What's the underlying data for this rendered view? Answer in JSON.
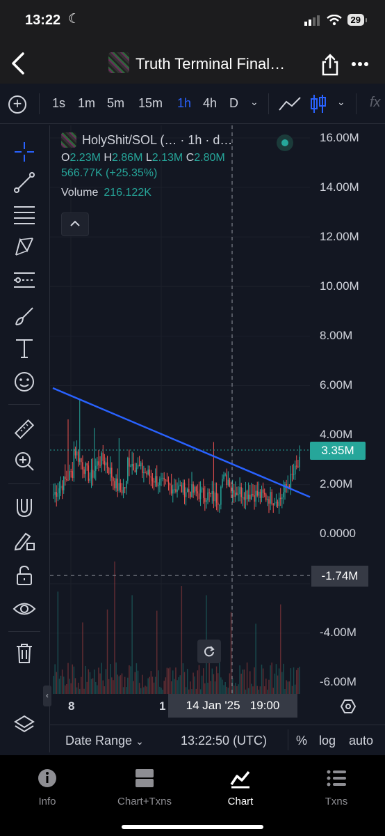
{
  "status": {
    "time": "13:22",
    "battery": "29"
  },
  "nav": {
    "title": "Truth Terminal Final…"
  },
  "toolbar": {
    "timeframes": [
      "1s",
      "1m",
      "5m",
      "15m",
      "1h",
      "4h",
      "D"
    ],
    "active_timeframe": "1h",
    "fx_label": "fx"
  },
  "legend": {
    "symbol": "HolyShit/SOL (… · 1h · d…",
    "o_key": "O",
    "o": "2.23M",
    "h_key": "H",
    "h": "2.86M",
    "l_key": "L",
    "l": "2.13M",
    "c_key": "C",
    "c": "2.80M",
    "change": "566.77K (+25.35%)",
    "volume_label": "Volume",
    "volume_value": "216.122K"
  },
  "price_axis": [
    "16.00M",
    "14.00M",
    "12.00M",
    "10.00M",
    "8.00M",
    "6.00M",
    "4.00M",
    "2.00M",
    "0.0000",
    "-4.00M",
    "-6.00M"
  ],
  "current_price": "3.35M",
  "crosshair_price": "-1.74M",
  "time_axis": {
    "left_label": "8",
    "mid_label": "1",
    "crosshair_time": "14 Jan '25   19:00"
  },
  "range_bar": {
    "date_range": "Date Range",
    "clock": "13:22:50 (UTC)",
    "percent": "%",
    "log": "log",
    "auto": "auto"
  },
  "tabs": [
    {
      "label": "Info"
    },
    {
      "label": "Chart+Txns"
    },
    {
      "label": "Chart"
    },
    {
      "label": "Txns"
    }
  ],
  "colors": {
    "up": "#26a69a",
    "down": "#ef5350",
    "trendline": "#2962ff",
    "background": "#131722"
  },
  "chart_data": {
    "type": "candlestick",
    "interval": "1h",
    "ylim": [
      -6000000,
      16000000
    ],
    "last_close": 2800000,
    "trendline": {
      "start_price": 5900000,
      "end_price": 1500000
    }
  }
}
